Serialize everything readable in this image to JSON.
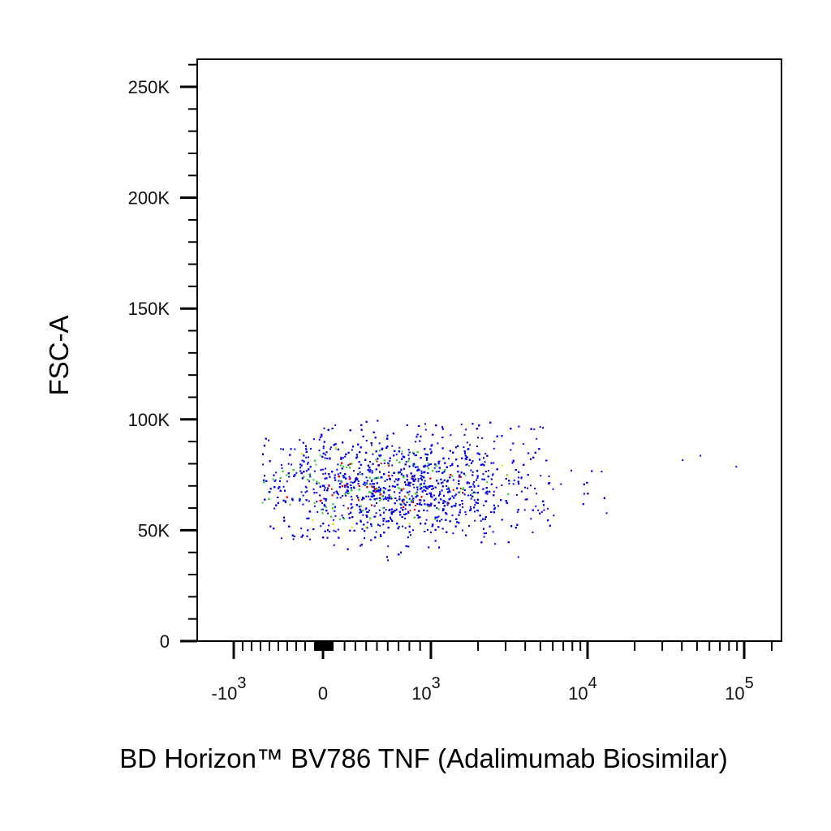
{
  "chart_data": {
    "type": "scatter",
    "title": "",
    "xlabel": "BD Horizon™ BV786 TNF (Adalimumab Biosimilar)",
    "ylabel": "FSC-A",
    "x_scale": "biexponential",
    "y_scale": "linear",
    "xlim": [
      -1500,
      100000
    ],
    "ylim": [
      0,
      262144
    ],
    "grid": false,
    "y_ticks": [
      {
        "value": 0,
        "label": "0"
      },
      {
        "value": 50000,
        "label": "50K"
      },
      {
        "value": 100000,
        "label": "100K"
      },
      {
        "value": 150000,
        "label": "150K"
      },
      {
        "value": 200000,
        "label": "200K"
      },
      {
        "value": 250000,
        "label": "250K"
      }
    ],
    "x_ticks": [
      {
        "value": -1000,
        "base": "-10",
        "exp": "3"
      },
      {
        "value": 0,
        "base": "0",
        "exp": ""
      },
      {
        "value": 1000,
        "base": "10",
        "exp": "3"
      },
      {
        "value": 10000,
        "base": "10",
        "exp": "4"
      },
      {
        "value": 100000,
        "base": "10",
        "exp": "5"
      }
    ],
    "density_colors": {
      "low": "#0000ee",
      "medium": "#33cc33",
      "high_mid": "#ccee00",
      "high": "#ee0000"
    },
    "population": {
      "description_values": "single population of events",
      "x_range": [
        -700,
        60000
      ],
      "y_range": [
        35000,
        100000
      ],
      "x_center": 700,
      "y_center": 70000,
      "n_events": 4200
    }
  }
}
